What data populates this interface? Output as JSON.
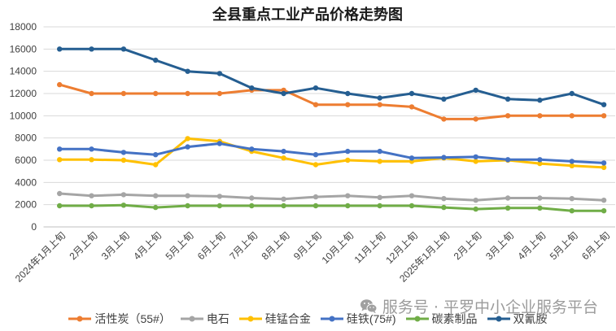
{
  "chart_data": {
    "type": "line",
    "title": "全县重点工业产品价格走势图",
    "categories": [
      "2024年1月上旬",
      "2月上旬",
      "3月上旬",
      "4月上旬",
      "5月上旬",
      "6月上旬",
      "7月上旬",
      "8月上旬",
      "9月上旬",
      "10月上旬",
      "11月上旬",
      "12月上旬",
      "2025年1月上旬",
      "2月上旬",
      "3月上旬",
      "4月上旬",
      "5月上旬",
      "6月上旬"
    ],
    "ylim": [
      0,
      18000
    ],
    "yticks": [
      0,
      2000,
      4000,
      6000,
      8000,
      10000,
      12000,
      14000,
      16000,
      18000
    ],
    "grid": "horizontal",
    "legend_position": "bottom",
    "series": [
      {
        "name": "活性炭（55#）",
        "color": "#ED7D31",
        "values": [
          12800,
          12000,
          12000,
          12000,
          12000,
          12000,
          12300,
          12300,
          11000,
          11000,
          11000,
          10800,
          9700,
          9700,
          10000,
          10000,
          10000,
          10000
        ]
      },
      {
        "name": "电石",
        "color": "#A5A5A5",
        "values": [
          3000,
          2800,
          2900,
          2800,
          2800,
          2750,
          2600,
          2500,
          2700,
          2800,
          2650,
          2800,
          2550,
          2400,
          2600,
          2600,
          2550,
          2400
        ]
      },
      {
        "name": "硅锰合金",
        "color": "#FFC000",
        "values": [
          6050,
          6050,
          6000,
          5600,
          7950,
          7700,
          6800,
          6200,
          5600,
          6000,
          5900,
          5900,
          6200,
          5900,
          6000,
          5700,
          5500,
          5350
        ]
      },
      {
        "name": "硅铁(75#)",
        "color": "#4472C4",
        "values": [
          7000,
          7000,
          6700,
          6500,
          7200,
          7500,
          7000,
          6800,
          6500,
          6800,
          6800,
          6200,
          6250,
          6300,
          6050,
          6050,
          5900,
          5750
        ]
      },
      {
        "name": "碳素制品",
        "color": "#70AD47",
        "values": [
          1900,
          1900,
          1950,
          1750,
          1900,
          1900,
          1900,
          1900,
          1900,
          1900,
          1900,
          1900,
          1750,
          1600,
          1700,
          1700,
          1450,
          1450
        ]
      },
      {
        "name": "双氰胺",
        "color": "#255E91",
        "values": [
          16000,
          16000,
          16000,
          15000,
          14000,
          13800,
          12500,
          12000,
          12500,
          12000,
          11600,
          12000,
          11500,
          12300,
          11500,
          11400,
          12000,
          11000
        ]
      }
    ]
  },
  "watermark": {
    "icon": "wechat-icon",
    "text": "服务号 · 平罗中小企业服务平台"
  }
}
